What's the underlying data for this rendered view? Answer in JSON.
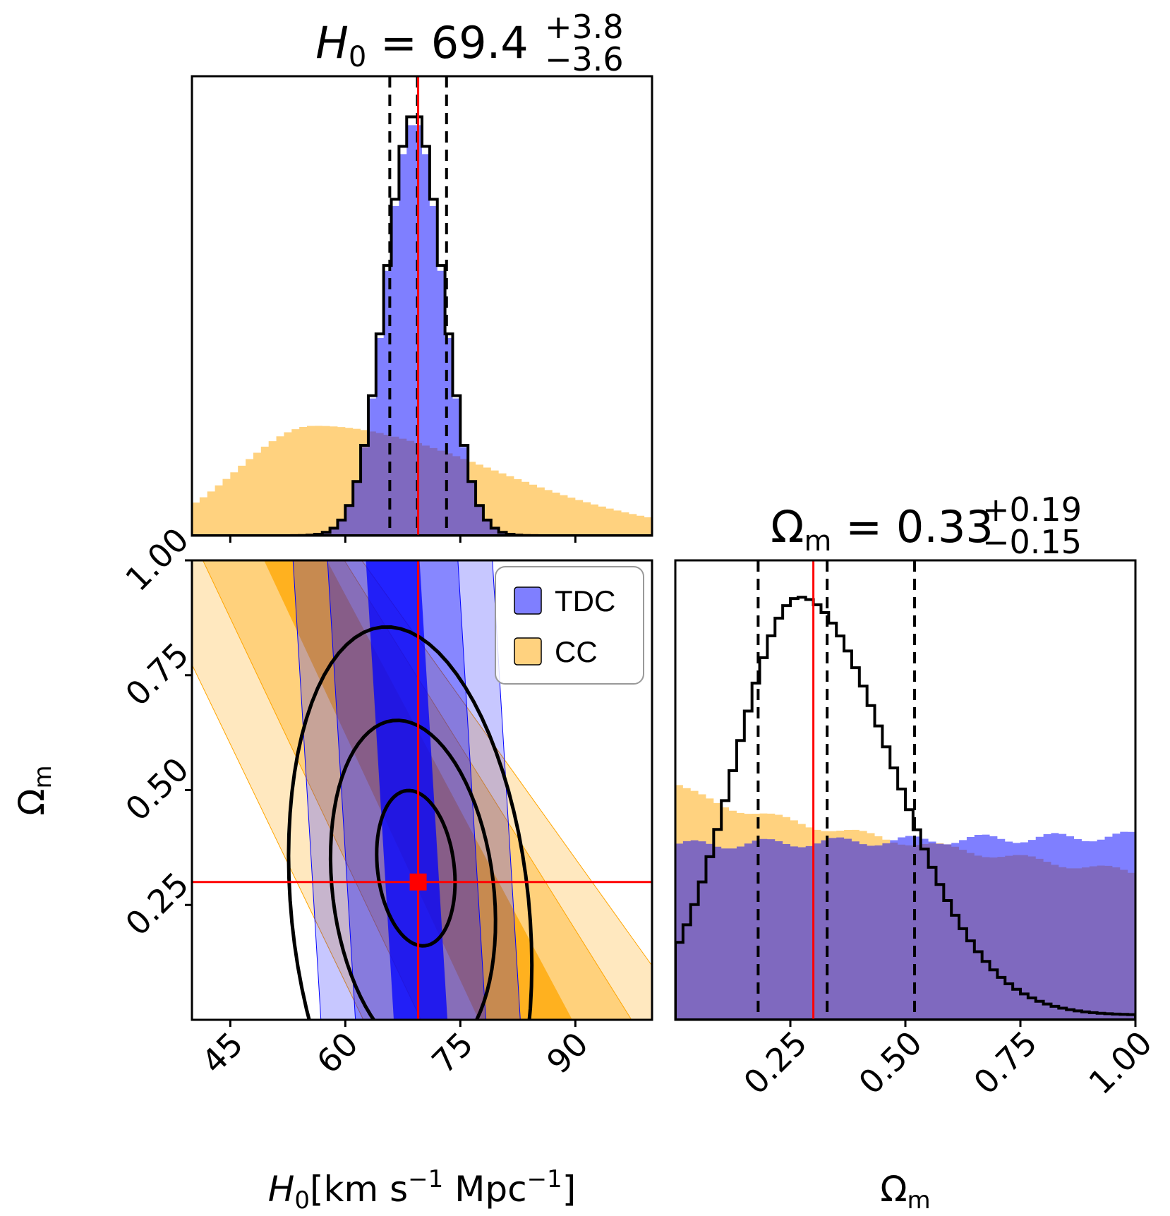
{
  "colors": {
    "tdc": "#0000ff",
    "cc": "#ffa500",
    "truth": "#ff0000",
    "median_histogram": "#000000"
  },
  "chart_data": [
    {
      "panel": "H0-marginal",
      "type": "histogram",
      "title": {
        "param": "H",
        "sub": "0",
        "eq": " = 69.4",
        "sup": "+3.8",
        "inf": "−3.6"
      },
      "xlim": [
        40,
        100
      ],
      "truth": 69.5,
      "quantiles": [
        65.8,
        69.4,
        73.2
      ],
      "series": [
        {
          "name": "TDC",
          "color": "#0000ff",
          "style": "filled",
          "peak": 69,
          "sigma": 3.7,
          "amplitude": 0.98
        },
        {
          "name": "CC",
          "color": "#ffa500",
          "style": "filled",
          "peak": 56,
          "sigma_left": 10,
          "sigma_right": 23,
          "amplitude": 0.26
        },
        {
          "style": "step",
          "color": "#000000",
          "peak": 69,
          "sigma": 3.7,
          "amplitude": 1.0
        }
      ]
    },
    {
      "panel": "H0-Om-joint",
      "type": "contour",
      "xlim": [
        40,
        100
      ],
      "ylim": [
        0,
        1
      ],
      "xticks": [
        "45",
        "60",
        "75",
        "90"
      ],
      "yticks": [
        "0.25",
        "0.50",
        "0.75",
        "1.00"
      ],
      "truth": {
        "H0": 69.5,
        "Om": 0.3
      },
      "xlabel": {
        "param": "H",
        "sub": "0",
        "units": "[km s",
        "u1": "−1",
        "mid": " Mpc",
        "u2": "−1",
        "close": "]"
      },
      "ylabel": {
        "param": "Ω",
        "sub": "m"
      },
      "legend": [
        {
          "label": "TDC",
          "color": "#0000ff"
        },
        {
          "label": "CC",
          "color": "#ffa500"
        }
      ],
      "contour_levels": [
        "1-sigma",
        "2-sigma",
        "3-sigma"
      ]
    },
    {
      "panel": "Om-marginal",
      "type": "histogram",
      "title": {
        "param": "Ω",
        "sub": "m",
        "eq": " = 0.33",
        "sup": "+0.19",
        "inf": "−0.15"
      },
      "xlim": [
        0,
        1
      ],
      "xticks": [
        "0.25",
        "0.50",
        "0.75",
        "1.00"
      ],
      "truth": 0.3,
      "quantiles": [
        0.18,
        0.33,
        0.52
      ],
      "xlabel": {
        "param": "Ω",
        "sub": "m"
      },
      "series": [
        {
          "name": "TDC",
          "color": "#0000ff",
          "style": "filled",
          "level_start": 0.38,
          "level_end": 0.4
        },
        {
          "name": "CC",
          "color": "#ffa500",
          "style": "filled",
          "level_start": 0.52,
          "level_end": 0.32
        },
        {
          "style": "step",
          "color": "#000000",
          "peak": 0.27,
          "peak_height": 0.91
        }
      ]
    }
  ]
}
